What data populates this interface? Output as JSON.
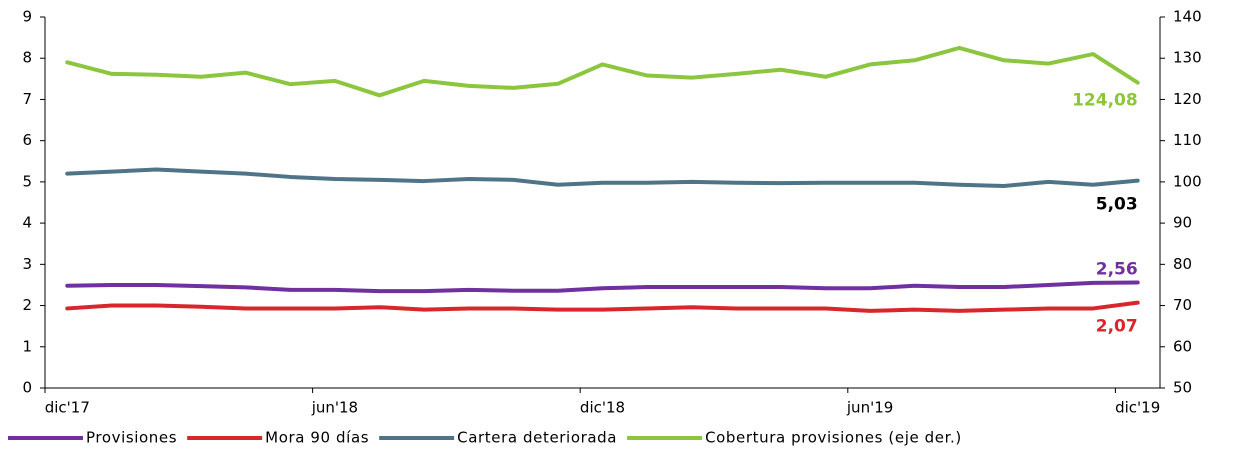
{
  "chart_data": {
    "type": "line",
    "categories": [
      "dic'17",
      null,
      null,
      null,
      null,
      null,
      "jun'18",
      null,
      null,
      null,
      null,
      null,
      "dic'18",
      null,
      null,
      null,
      null,
      null,
      "jun'19",
      null,
      null,
      null,
      null,
      null,
      "dic'19"
    ],
    "ylim": [
      0,
      9
    ],
    "yticks": [
      0,
      1,
      2,
      3,
      4,
      5,
      6,
      7,
      8,
      9
    ],
    "y2lim": [
      50,
      140
    ],
    "y2ticks": [
      50,
      60,
      70,
      80,
      90,
      100,
      110,
      120,
      130,
      140
    ],
    "grid": false,
    "legend": "bottom",
    "series": [
      {
        "name": "Provisiones",
        "color": "#7030a0",
        "values": [
          2.48,
          2.5,
          2.5,
          2.47,
          2.44,
          2.38,
          2.38,
          2.35,
          2.35,
          2.38,
          2.36,
          2.36,
          2.42,
          2.45,
          2.45,
          2.45,
          2.45,
          2.42,
          2.42,
          2.48,
          2.45,
          2.45,
          2.5,
          2.55,
          2.56
        ],
        "value_labels": [
          null,
          null,
          null,
          null,
          null,
          null,
          null,
          null,
          null,
          null,
          null,
          null,
          null,
          null,
          null,
          null,
          null,
          null,
          null,
          null,
          null,
          null,
          null,
          null,
          "2,56"
        ]
      },
      {
        "name": "Mora 90 días",
        "color": "#d9262c",
        "values": [
          1.93,
          2.0,
          2.0,
          1.97,
          1.93,
          1.93,
          1.93,
          1.96,
          1.9,
          1.93,
          1.93,
          1.9,
          1.9,
          1.93,
          1.96,
          1.93,
          1.93,
          1.93,
          1.87,
          1.9,
          1.87,
          1.9,
          1.93,
          1.93,
          2.07
        ],
        "value_labels": [
          null,
          null,
          null,
          null,
          null,
          null,
          null,
          null,
          null,
          null,
          null,
          null,
          null,
          null,
          null,
          null,
          null,
          null,
          null,
          null,
          null,
          null,
          null,
          null,
          "2,07"
        ]
      },
      {
        "name": "Cartera deteriorada",
        "color": "#4f7487",
        "label_color": "#000000",
        "values": [
          5.2,
          5.25,
          5.3,
          5.25,
          5.2,
          5.12,
          5.07,
          5.05,
          5.02,
          5.07,
          5.05,
          4.93,
          4.98,
          4.98,
          5.0,
          4.98,
          4.97,
          4.98,
          4.98,
          4.98,
          4.93,
          4.9,
          5.0,
          4.93,
          5.03
        ],
        "value_labels": [
          null,
          null,
          null,
          null,
          null,
          null,
          null,
          null,
          null,
          null,
          null,
          null,
          null,
          null,
          null,
          null,
          null,
          null,
          null,
          null,
          null,
          null,
          null,
          null,
          "5,03"
        ]
      },
      {
        "name": "Cobertura provisiones (eje der.)",
        "color": "#8cc63f",
        "axis": "y2",
        "values": [
          129,
          126.2,
          126,
          125.5,
          126.5,
          123.7,
          124.5,
          121,
          124.5,
          123.3,
          122.8,
          123.8,
          128.5,
          125.8,
          125.3,
          126.2,
          127.2,
          125.5,
          128.5,
          129.5,
          132.5,
          129.5,
          128.7,
          131,
          124.08
        ],
        "value_labels": [
          null,
          null,
          null,
          null,
          null,
          null,
          null,
          null,
          null,
          null,
          null,
          null,
          null,
          null,
          null,
          null,
          null,
          null,
          null,
          null,
          null,
          null,
          null,
          null,
          "124,08"
        ]
      }
    ]
  }
}
